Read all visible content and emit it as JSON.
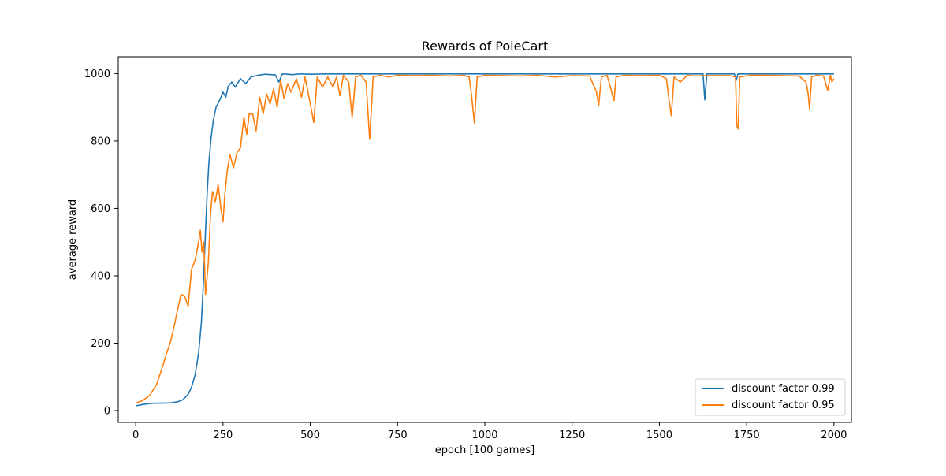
{
  "chart_data": {
    "type": "line",
    "title": "Rewards of PoleCart",
    "xlabel": "epoch [100 games]",
    "ylabel": "average reward",
    "xlim": [
      -50,
      2050
    ],
    "ylim": [
      -35,
      1050
    ],
    "xticks": [
      0,
      250,
      500,
      750,
      1000,
      1250,
      1500,
      1750,
      2000
    ],
    "yticks": [
      0,
      200,
      400,
      600,
      800,
      1000
    ],
    "grid": false,
    "legend_position": "lower-right",
    "series": [
      {
        "name": "discount factor 0.99",
        "color": "#1f77b4",
        "points": [
          [
            0,
            14
          ],
          [
            20,
            18
          ],
          [
            40,
            21
          ],
          [
            60,
            22
          ],
          [
            80,
            22
          ],
          [
            100,
            23
          ],
          [
            120,
            26
          ],
          [
            135,
            32
          ],
          [
            150,
            48
          ],
          [
            160,
            70
          ],
          [
            170,
            105
          ],
          [
            180,
            170
          ],
          [
            188,
            260
          ],
          [
            193,
            360
          ],
          [
            197,
            460
          ],
          [
            201,
            560
          ],
          [
            205,
            650
          ],
          [
            210,
            740
          ],
          [
            216,
            810
          ],
          [
            222,
            860
          ],
          [
            230,
            900
          ],
          [
            240,
            920
          ],
          [
            250,
            945
          ],
          [
            258,
            930
          ],
          [
            265,
            962
          ],
          [
            275,
            975
          ],
          [
            285,
            960
          ],
          [
            300,
            985
          ],
          [
            315,
            970
          ],
          [
            330,
            990
          ],
          [
            350,
            995
          ],
          [
            370,
            998
          ],
          [
            400,
            996
          ],
          [
            410,
            975
          ],
          [
            420,
            999
          ],
          [
            450,
            997
          ],
          [
            470,
            999
          ],
          [
            500,
            998
          ],
          [
            550,
            999
          ],
          [
            600,
            999
          ],
          [
            700,
            999
          ],
          [
            800,
            999
          ],
          [
            900,
            999
          ],
          [
            1000,
            999
          ],
          [
            1100,
            999
          ],
          [
            1200,
            999
          ],
          [
            1300,
            999
          ],
          [
            1400,
            999
          ],
          [
            1500,
            999
          ],
          [
            1600,
            999
          ],
          [
            1625,
            999
          ],
          [
            1630,
            922
          ],
          [
            1636,
            999
          ],
          [
            1700,
            999
          ],
          [
            1715,
            999
          ],
          [
            1720,
            980
          ],
          [
            1725,
            999
          ],
          [
            1800,
            999
          ],
          [
            1900,
            999
          ],
          [
            2000,
            999
          ]
        ]
      },
      {
        "name": "discount factor 0.95",
        "color": "#ff7f0e",
        "points": [
          [
            0,
            22
          ],
          [
            20,
            30
          ],
          [
            40,
            45
          ],
          [
            60,
            78
          ],
          [
            75,
            125
          ],
          [
            90,
            175
          ],
          [
            100,
            205
          ],
          [
            110,
            250
          ],
          [
            120,
            300
          ],
          [
            130,
            345
          ],
          [
            140,
            340
          ],
          [
            150,
            310
          ],
          [
            160,
            420
          ],
          [
            170,
            445
          ],
          [
            180,
            500
          ],
          [
            185,
            535
          ],
          [
            190,
            470
          ],
          [
            195,
            500
          ],
          [
            200,
            345
          ],
          [
            208,
            440
          ],
          [
            214,
            580
          ],
          [
            220,
            650
          ],
          [
            228,
            620
          ],
          [
            236,
            670
          ],
          [
            244,
            600
          ],
          [
            250,
            560
          ],
          [
            255,
            640
          ],
          [
            262,
            710
          ],
          [
            270,
            760
          ],
          [
            280,
            720
          ],
          [
            290,
            765
          ],
          [
            300,
            780
          ],
          [
            310,
            870
          ],
          [
            318,
            820
          ],
          [
            325,
            880
          ],
          [
            335,
            880
          ],
          [
            345,
            830
          ],
          [
            355,
            930
          ],
          [
            365,
            880
          ],
          [
            375,
            940
          ],
          [
            385,
            910
          ],
          [
            395,
            955
          ],
          [
            405,
            900
          ],
          [
            415,
            980
          ],
          [
            425,
            925
          ],
          [
            435,
            970
          ],
          [
            445,
            945
          ],
          [
            460,
            985
          ],
          [
            475,
            930
          ],
          [
            485,
            990
          ],
          [
            500,
            910
          ],
          [
            510,
            855
          ],
          [
            520,
            990
          ],
          [
            535,
            960
          ],
          [
            550,
            990
          ],
          [
            565,
            960
          ],
          [
            575,
            990
          ],
          [
            585,
            935
          ],
          [
            595,
            995
          ],
          [
            610,
            975
          ],
          [
            620,
            870
          ],
          [
            630,
            990
          ],
          [
            645,
            995
          ],
          [
            660,
            975
          ],
          [
            670,
            805
          ],
          [
            680,
            990
          ],
          [
            700,
            995
          ],
          [
            725,
            990
          ],
          [
            750,
            995
          ],
          [
            800,
            994
          ],
          [
            850,
            995
          ],
          [
            900,
            993
          ],
          [
            940,
            995
          ],
          [
            955,
            990
          ],
          [
            962,
            935
          ],
          [
            970,
            853
          ],
          [
            978,
            990
          ],
          [
            1000,
            995
          ],
          [
            1050,
            994
          ],
          [
            1100,
            993
          ],
          [
            1150,
            995
          ],
          [
            1200,
            990
          ],
          [
            1250,
            994
          ],
          [
            1300,
            993
          ],
          [
            1320,
            945
          ],
          [
            1326,
            905
          ],
          [
            1334,
            990
          ],
          [
            1350,
            995
          ],
          [
            1370,
            920
          ],
          [
            1376,
            990
          ],
          [
            1400,
            995
          ],
          [
            1450,
            994
          ],
          [
            1500,
            995
          ],
          [
            1520,
            985
          ],
          [
            1528,
            920
          ],
          [
            1534,
            875
          ],
          [
            1542,
            990
          ],
          [
            1560,
            975
          ],
          [
            1580,
            995
          ],
          [
            1600,
            993
          ],
          [
            1650,
            994
          ],
          [
            1700,
            994
          ],
          [
            1718,
            990
          ],
          [
            1722,
            845
          ],
          [
            1726,
            835
          ],
          [
            1730,
            990
          ],
          [
            1760,
            995
          ],
          [
            1800,
            995
          ],
          [
            1850,
            994
          ],
          [
            1900,
            993
          ],
          [
            1920,
            975
          ],
          [
            1926,
            940
          ],
          [
            1930,
            895
          ],
          [
            1936,
            990
          ],
          [
            1950,
            995
          ],
          [
            1970,
            993
          ],
          [
            1982,
            950
          ],
          [
            1990,
            995
          ],
          [
            1994,
            975
          ],
          [
            2000,
            985
          ]
        ]
      }
    ]
  }
}
